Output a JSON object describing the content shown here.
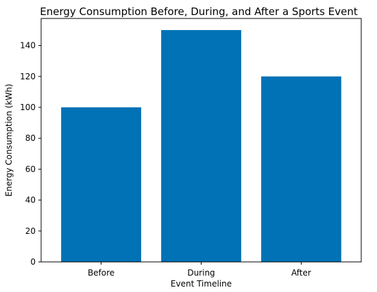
{
  "chart_data": {
    "type": "bar",
    "title": "Energy Consumption Before, During, and After a Sports Event",
    "xlabel": "Event Timeline",
    "ylabel": "Energy Consumption (kWh)",
    "categories": [
      "Before",
      "During",
      "After"
    ],
    "values": [
      100,
      150,
      120
    ],
    "ylim": [
      0,
      157.5
    ],
    "yticks": [
      0,
      20,
      40,
      60,
      80,
      100,
      120,
      140
    ],
    "bar_color": "#0072b5",
    "grid": false,
    "legend": "none"
  }
}
